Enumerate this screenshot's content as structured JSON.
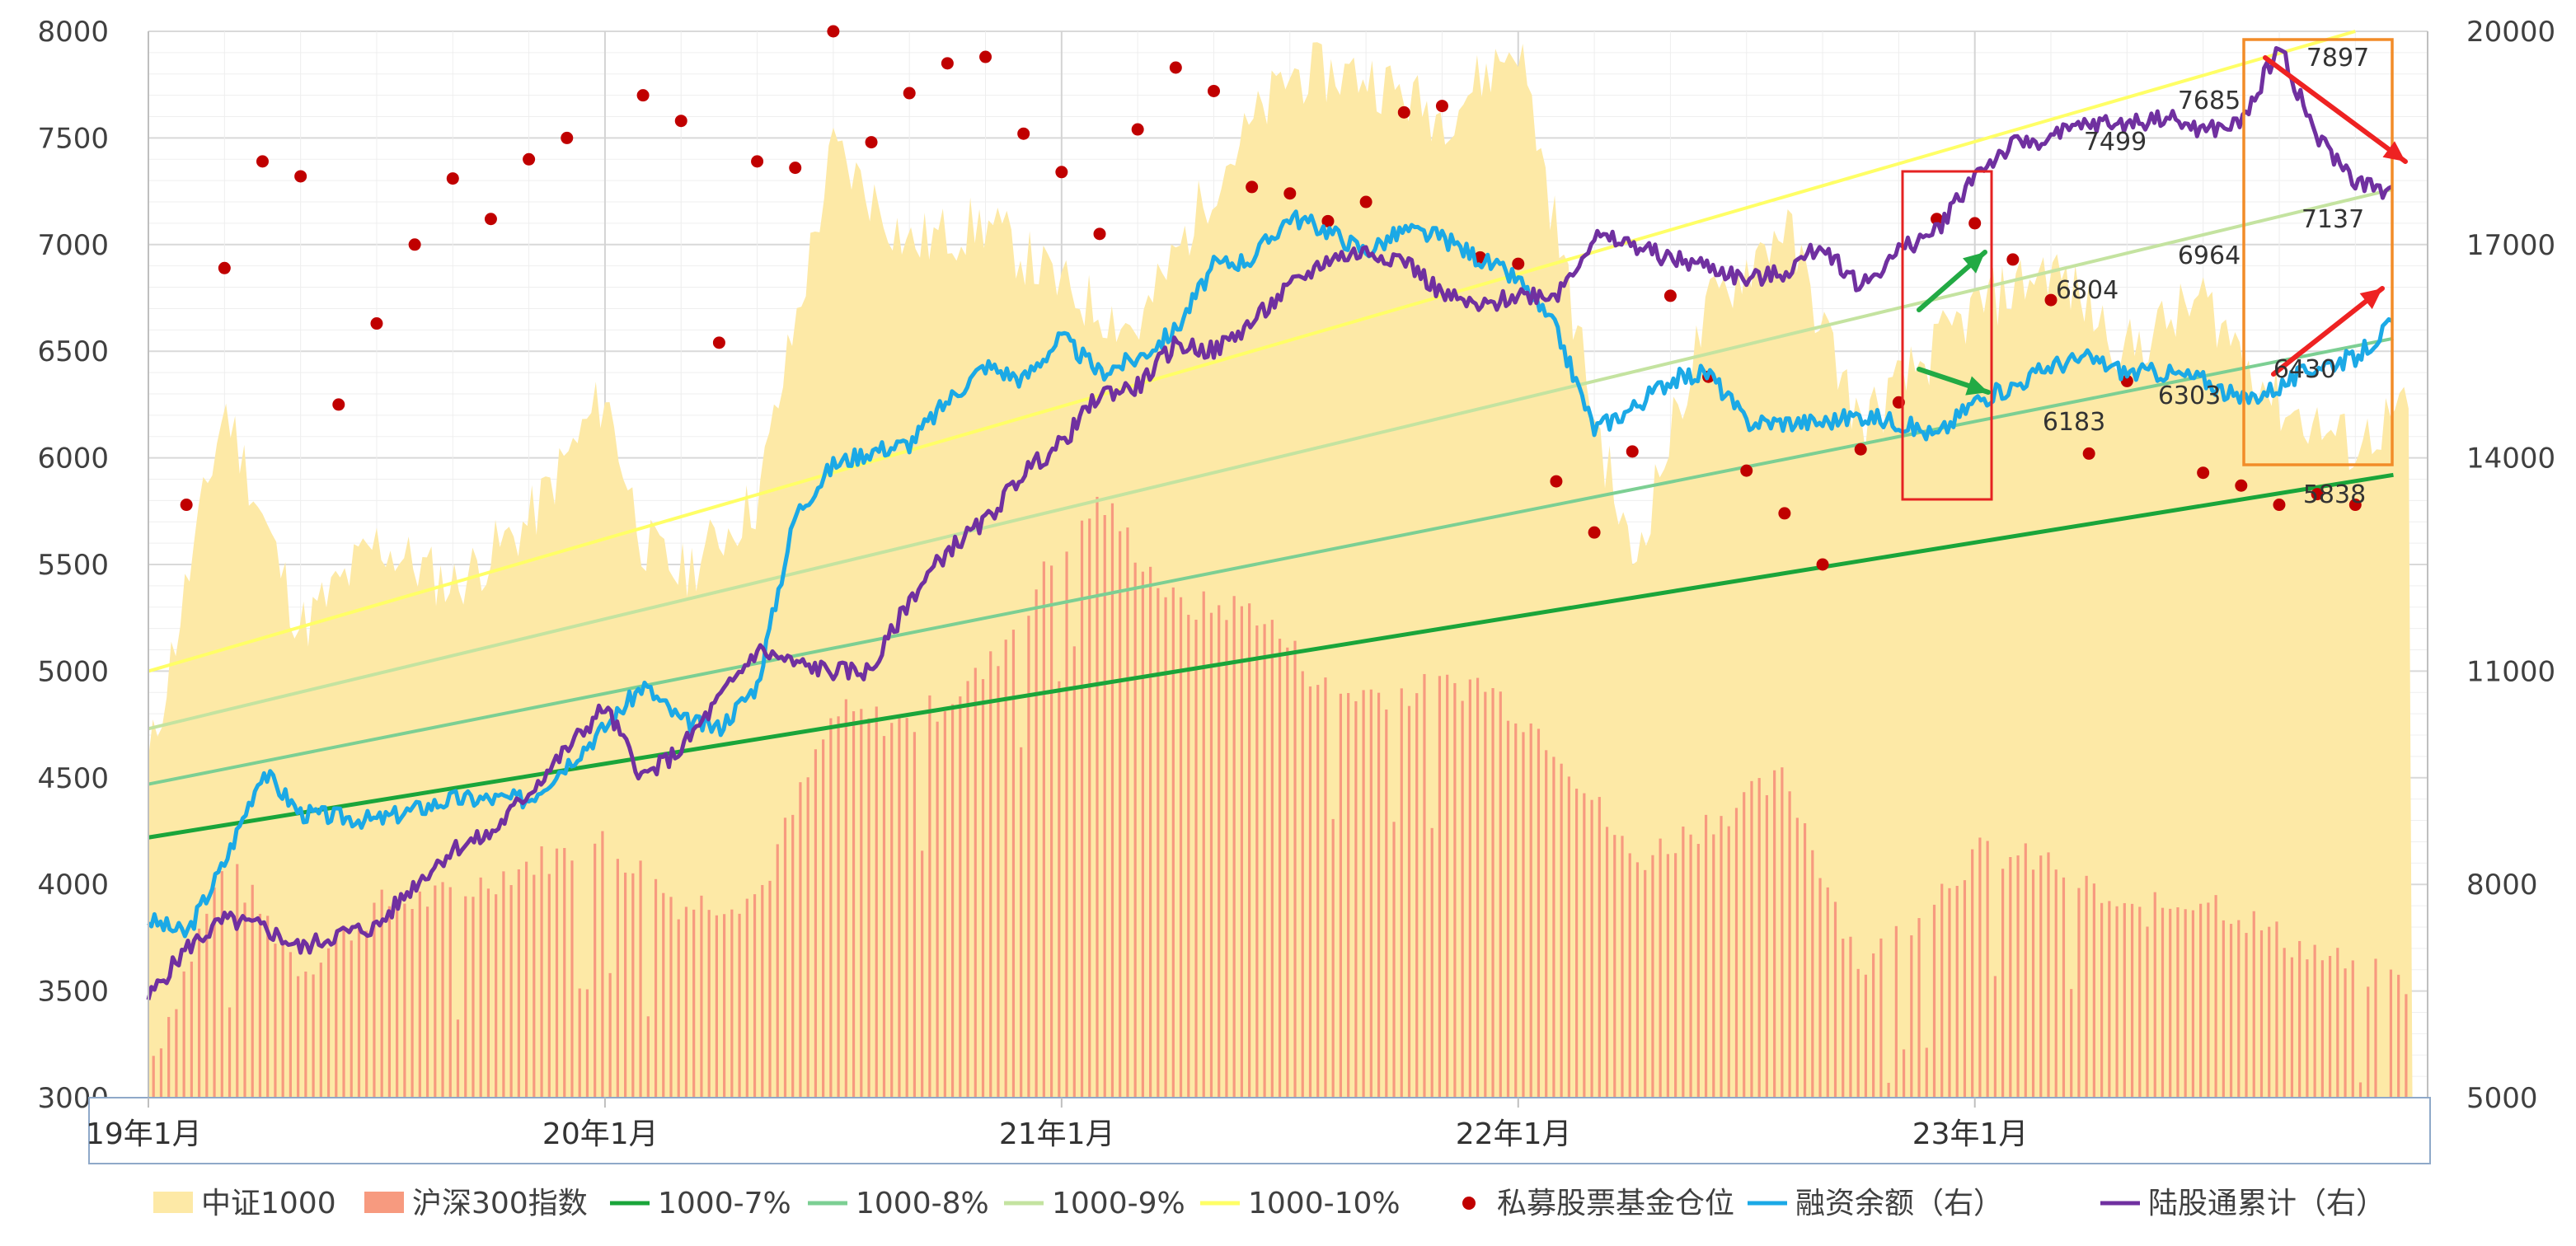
{
  "chart_data": {
    "type": "area",
    "title": "",
    "x_ticks": [
      "19年1月",
      "20年1月",
      "21年1月",
      "22年1月",
      "23年1月"
    ],
    "x_range": [
      "2019-01",
      "2023-12"
    ],
    "y_left": {
      "ticks": [
        3000,
        3500,
        4000,
        4500,
        5000,
        5500,
        6000,
        6500,
        7000,
        7500,
        8000
      ],
      "range": [
        3000,
        8000
      ]
    },
    "y_right": {
      "ticks": [
        5000,
        8000,
        11000,
        14000,
        17000,
        20000
      ],
      "range": [
        5000,
        20000
      ]
    },
    "grid": true,
    "legend_position": "bottom",
    "colors": {
      "zz1000": "#fde9a6",
      "hs300": "#f79a7f",
      "line7": "#1aa53a",
      "line8": "#7ccf93",
      "line9": "#c4e3a0",
      "line10": "#ffff66",
      "dots": "#c00000",
      "margin": "#1ba9e6",
      "north": "#7030a0"
    },
    "series": [
      {
        "name": "中证1000",
        "kind": "area",
        "axis": "left",
        "x": [
          "2019-01",
          "2019-03",
          "2019-05",
          "2019-07",
          "2019-09",
          "2019-11",
          "2020-01",
          "2020-02",
          "2020-03",
          "2020-05",
          "2020-07",
          "2020-09",
          "2020-11",
          "2021-01",
          "2021-03",
          "2021-05",
          "2021-07",
          "2021-09",
          "2021-11",
          "2022-01",
          "2022-03",
          "2022-04",
          "2022-06",
          "2022-08",
          "2022-10",
          "2023-01",
          "2023-03",
          "2023-05",
          "2023-07",
          "2023-09",
          "2023-11",
          "2023-12"
        ],
        "values": [
          4550,
          6250,
          5200,
          5600,
          5400,
          5700,
          6300,
          5600,
          5450,
          5800,
          7450,
          7000,
          7100,
          6800,
          6600,
          7300,
          7800,
          7800,
          7600,
          7950,
          6200,
          5500,
          6700,
          7100,
          6150,
          6700,
          6900,
          6500,
          6750,
          6250,
          6050,
          6200
        ]
      },
      {
        "name": "沪深300指数",
        "kind": "bar",
        "axis": "left",
        "x": [
          "2019-01",
          "2019-03",
          "2019-05",
          "2019-07",
          "2019-09",
          "2019-11",
          "2020-01",
          "2020-03",
          "2020-05",
          "2020-07",
          "2020-09",
          "2020-11",
          "2021-01",
          "2021-02",
          "2021-04",
          "2021-06",
          "2021-08",
          "2021-10",
          "2021-12",
          "2022-02",
          "2022-04",
          "2022-06",
          "2022-08",
          "2022-10",
          "2023-01",
          "2023-03",
          "2023-05",
          "2023-07",
          "2023-09",
          "2023-11",
          "2023-12"
        ],
        "values": [
          3150,
          4100,
          3600,
          3900,
          3950,
          4100,
          4200,
          3900,
          3950,
          4800,
          4750,
          5000,
          5600,
          5800,
          5300,
          5300,
          4900,
          4900,
          4950,
          4650,
          4100,
          4300,
          4500,
          3600,
          4150,
          4100,
          3850,
          3950,
          3750,
          3600,
          3550
        ]
      },
      {
        "name": "1000-7%",
        "kind": "line",
        "axis": "left",
        "x": [
          "2019-01",
          "2023-12"
        ],
        "values": [
          4220,
          5920
        ]
      },
      {
        "name": "1000-8%",
        "kind": "line",
        "axis": "left",
        "x": [
          "2019-01",
          "2023-12"
        ],
        "values": [
          4470,
          6560
        ]
      },
      {
        "name": "1000-9%",
        "kind": "line",
        "axis": "left",
        "x": [
          "2019-01",
          "2023-12"
        ],
        "values": [
          4730,
          7260
        ]
      },
      {
        "name": "1000-10%",
        "kind": "line",
        "axis": "left",
        "x": [
          "2019-01",
          "2023-11"
        ],
        "values": [
          5000,
          8000
        ]
      },
      {
        "name": "私募股票基金仓位",
        "kind": "scatter",
        "axis": "left",
        "x": [
          "2019-02",
          "2019-03",
          "2019-04",
          "2019-05",
          "2019-06",
          "2019-07",
          "2019-08",
          "2019-09",
          "2019-10",
          "2019-11",
          "2019-12",
          "2020-02",
          "2020-03",
          "2020-04",
          "2020-05",
          "2020-06",
          "2020-07",
          "2020-08",
          "2020-09",
          "2020-10",
          "2020-11",
          "2020-12",
          "2021-01",
          "2021-02",
          "2021-03",
          "2021-04",
          "2021-05",
          "2021-06",
          "2021-07",
          "2021-08",
          "2021-09",
          "2021-10",
          "2021-11",
          "2021-12",
          "2022-01",
          "2022-02",
          "2022-03",
          "2022-04",
          "2022-05",
          "2022-06",
          "2022-07",
          "2022-08",
          "2022-09",
          "2022-10",
          "2022-11",
          "2022-12",
          "2023-01",
          "2023-02",
          "2023-03",
          "2023-04",
          "2023-05",
          "2023-07",
          "2023-08",
          "2023-09",
          "2023-10",
          "2023-11"
        ],
        "values": [
          5780,
          6890,
          7390,
          7320,
          6250,
          6630,
          7000,
          7310,
          7120,
          7400,
          7500,
          7700,
          7580,
          6540,
          7390,
          7360,
          8000,
          7480,
          7710,
          7850,
          7880,
          7520,
          7340,
          7050,
          7540,
          7830,
          7720,
          7270,
          7240,
          7110,
          7200,
          7620,
          7650,
          6940,
          6910,
          5890,
          5650,
          6030,
          6760,
          6380,
          5940,
          5740,
          5500,
          6040,
          6260,
          7120,
          7100,
          6930,
          6740,
          6020,
          6360,
          5930,
          5870,
          5780,
          5830,
          5780
        ]
      },
      {
        "name": "融资余额（右）",
        "kind": "line",
        "axis": "right",
        "x": [
          "2019-01",
          "2019-02",
          "2019-03",
          "2019-04",
          "2019-05",
          "2019-07",
          "2019-09",
          "2019-11",
          "2019-12",
          "2020-01",
          "2020-02",
          "2020-03",
          "2020-04",
          "2020-05",
          "2020-06",
          "2020-07",
          "2020-08",
          "2020-09",
          "2020-10",
          "2020-11",
          "2020-12",
          "2021-01",
          "2021-02",
          "2021-03",
          "2021-04",
          "2021-05",
          "2021-06",
          "2021-07",
          "2021-08",
          "2021-09",
          "2021-10",
          "2021-11",
          "2021-12",
          "2022-01",
          "2022-02",
          "2022-03",
          "2022-04",
          "2022-05",
          "2022-06",
          "2022-07",
          "2022-08",
          "2022-09",
          "2022-10",
          "2022-11",
          "2022-12",
          "2023-01",
          "2023-02",
          "2023-03",
          "2023-04",
          "2023-05",
          "2023-06",
          "2023-07",
          "2023-08",
          "2023-09",
          "2023-10",
          "2023-11",
          "2023-12"
        ],
        "values": [
          7500,
          7300,
          8300,
          9600,
          9000,
          8900,
          9200,
          9200,
          9700,
          10200,
          10800,
          10300,
          10200,
          10800,
          13200,
          13900,
          14100,
          14200,
          14800,
          15300,
          15100,
          15700,
          15200,
          15400,
          15800,
          16700,
          16800,
          17400,
          17200,
          16900,
          17200,
          17100,
          16800,
          16500,
          15800,
          14400,
          14700,
          15100,
          15200,
          14500,
          14500,
          14500,
          14600,
          14500,
          14300,
          14800,
          15000,
          15300,
          15400,
          15200,
          15200,
          15100,
          14800,
          15000,
          15300,
          15400,
          15900
        ]
      },
      {
        "name": "陆股通累计（右）",
        "kind": "line",
        "axis": "right",
        "x": [
          "2019-01",
          "2019-02",
          "2019-03",
          "2019-04",
          "2019-05",
          "2019-06",
          "2019-07",
          "2019-08",
          "2019-09",
          "2019-10",
          "2019-11",
          "2019-12",
          "2020-01",
          "2020-02",
          "2020-03",
          "2020-04",
          "2020-05",
          "2020-06",
          "2020-07",
          "2020-08",
          "2020-09",
          "2020-10",
          "2020-11",
          "2020-12",
          "2021-01",
          "2021-02",
          "2021-03",
          "2021-04",
          "2021-05",
          "2021-06",
          "2021-07",
          "2021-08",
          "2021-09",
          "2021-10",
          "2021-11",
          "2021-12",
          "2022-01",
          "2022-02",
          "2022-03",
          "2022-04",
          "2022-05",
          "2022-06",
          "2022-07",
          "2022-08",
          "2022-09",
          "2022-10",
          "2022-11",
          "2022-12",
          "2023-01",
          "2023-02",
          "2023-03",
          "2023-04",
          "2023-05",
          "2023-06",
          "2023-07",
          "2023-08",
          "2023-09",
          "2023-10",
          "2023-11",
          "2023-12"
        ],
        "values": [
          6400,
          7100,
          7500,
          7400,
          7100,
          7300,
          7400,
          8000,
          8500,
          8700,
          9300,
          9900,
          10500,
          9500,
          9900,
          10600,
          11300,
          11100,
          11000,
          11000,
          12000,
          12700,
          13100,
          13800,
          14200,
          14900,
          15000,
          15600,
          15500,
          15900,
          16400,
          16800,
          16900,
          16800,
          16300,
          16100,
          16300,
          16300,
          17100,
          17000,
          16800,
          16700,
          16500,
          16600,
          17000,
          16400,
          16900,
          17200,
          18000,
          18400,
          18500,
          18700,
          18700,
          18800,
          18600,
          18700,
          19800,
          18500,
          17900,
          17700
        ]
      }
    ],
    "annotations": [
      "7897",
      "7685",
      "7499",
      "7137",
      "6964",
      "6804",
      "6430",
      "6303",
      "6183",
      "5838"
    ],
    "arrows": [
      {
        "color": "#22aa44",
        "direction": "up"
      },
      {
        "color": "#22aa44",
        "direction": "down"
      },
      {
        "color": "#ee2222",
        "direction": "down"
      },
      {
        "color": "#ee2222",
        "direction": "up"
      }
    ],
    "highlight_boxes": [
      {
        "color": "#e52222",
        "from": "2022-11",
        "to": "2023-01"
      },
      {
        "color": "#f28c28",
        "from": "2023-09",
        "to": "2023-12"
      }
    ]
  }
}
